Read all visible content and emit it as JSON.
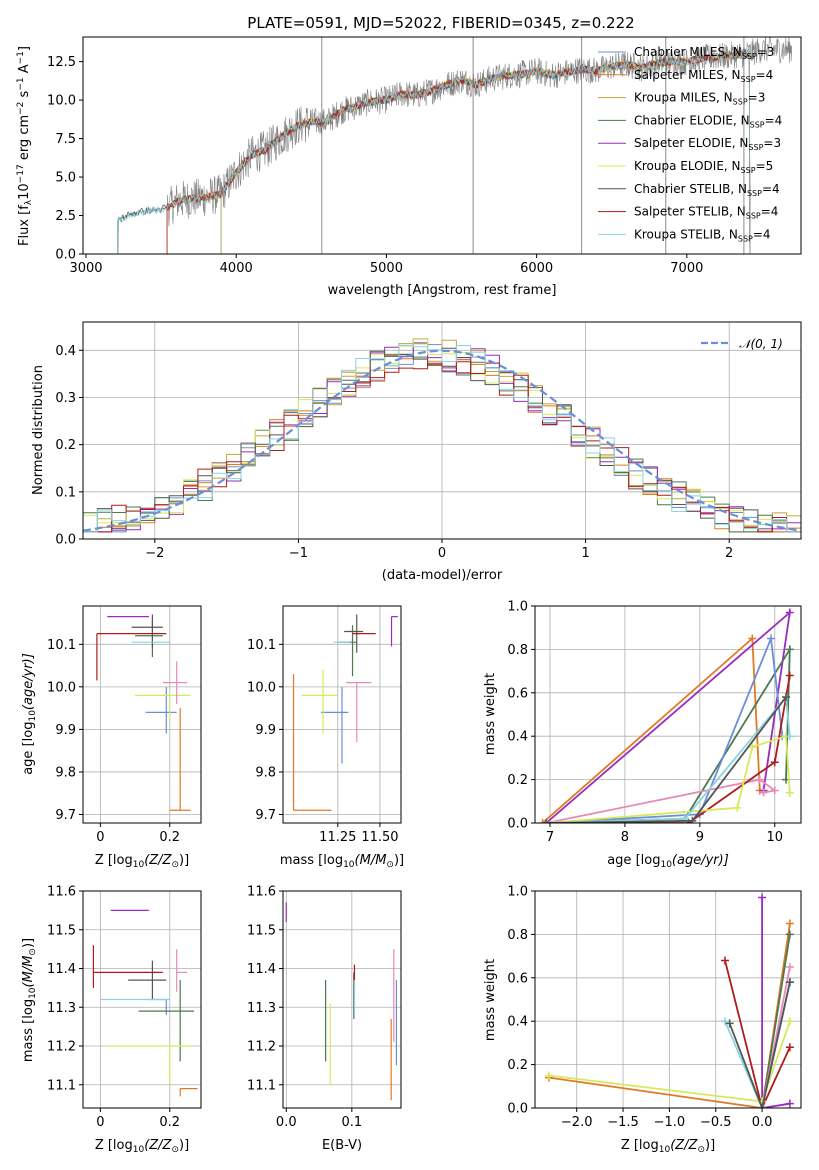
{
  "figure": {
    "title": "PLATE=0591, MJD=52022, FIBERID=0345, z=0.222"
  },
  "models": [
    {
      "name": "Chabrier MILES, N",
      "sub": "SSP",
      "rest": "=3",
      "color": "#6a8fd8"
    },
    {
      "name": "Salpeter MILES, N",
      "sub": "SSP",
      "rest": "=4",
      "color": "#e07a22"
    },
    {
      "name": "Kroupa MILES, N",
      "sub": "SSP",
      "rest": "=3",
      "color": "#c7a23a"
    },
    {
      "name": "Chabrier ELODIE, N",
      "sub": "SSP",
      "rest": "=4",
      "color": "#4a7a4e"
    },
    {
      "name": "Salpeter ELODIE, N",
      "sub": "SSP",
      "rest": "=3",
      "color": "#9a2bbf"
    },
    {
      "name": "Kroupa ELODIE, N",
      "sub": "SSP",
      "rest": "=5",
      "color": "#d8e85a"
    },
    {
      "name": "Chabrier STELIB, N",
      "sub": "SSP",
      "rest": "=4",
      "color": "#555555"
    },
    {
      "name": "Salpeter STELIB, N",
      "sub": "SSP",
      "rest": "=4",
      "color": "#b01c1c"
    },
    {
      "name": "Kroupa STELIB, N",
      "sub": "SSP",
      "rest": "=4",
      "color": "#8ad4e0"
    }
  ],
  "extra_colors": {
    "pink": "#e88ab8",
    "data": "#808080",
    "normal": "#6a8fd8"
  },
  "chart_data": [
    {
      "id": "spectrum",
      "type": "line",
      "title": "PLATE=0591, MJD=52022, FIBERID=0345, z=0.222",
      "xlabel": "wavelength [Angstrom, rest frame]",
      "ylabel": "Flux [f",
      "ylabel_sub": "λ",
      "ylabel_rest": "10",
      "ylabel_sup": "−17",
      "ylabel_end": " erg cm",
      "xlim": [
        2980,
        7760
      ],
      "ylim": [
        0,
        14.1
      ],
      "xticks": [
        3000,
        4000,
        5000,
        6000,
        7000
      ],
      "yticks": [
        "0.0",
        "2.5",
        "5.0",
        "7.5",
        "10.0",
        "12.5"
      ],
      "envelope": {
        "x": [
          3210,
          3300,
          3400,
          3500,
          3560,
          3620,
          3700,
          3800,
          3900,
          4000,
          4100,
          4200,
          4300,
          4400,
          4500,
          4600,
          4700,
          4800,
          4900,
          5000,
          5100,
          5200,
          5300,
          5400,
          5500,
          5600,
          5700,
          5800,
          5900,
          6000,
          6100,
          6200,
          6300,
          6400,
          6500,
          6600,
          6700,
          6800,
          6900,
          7000,
          7100,
          7200,
          7300,
          7400,
          7500
        ],
        "y": [
          2.2,
          2.6,
          2.8,
          2.9,
          3.1,
          3.5,
          3.6,
          3.7,
          3.9,
          5.3,
          6.4,
          6.8,
          7.6,
          8.3,
          8.6,
          8.6,
          9.3,
          9.6,
          9.9,
          10.0,
          10.4,
          10.3,
          10.6,
          11.0,
          11.3,
          11.0,
          11.4,
          11.6,
          11.7,
          11.9,
          11.6,
          11.8,
          12.0,
          11.9,
          12.2,
          12.3,
          12.1,
          12.4,
          12.5,
          12.5,
          12.7,
          12.8,
          12.9,
          13.0,
          13.3
        ]
      },
      "model_starts": {
        "stelib": 3210,
        "elodie": 3900,
        "miles": 3540
      },
      "sky_lines": [
        4570,
        5577,
        6300,
        6860,
        7380
      ]
    },
    {
      "id": "residual_hist",
      "type": "histogram",
      "xlabel": "(data-model)/error",
      "ylabel": "Normed distribution",
      "xlim": [
        -2.5,
        2.5
      ],
      "ylim": [
        0,
        0.46
      ],
      "xticks": [
        "−2",
        "−1",
        "0",
        "1",
        "2"
      ],
      "yticks": [
        "0.0",
        "0.1",
        "0.2",
        "0.3",
        "0.4"
      ],
      "reference": {
        "name": "𝒩(0, 1)",
        "type": "gaussian",
        "mean": 0,
        "sigma": 1
      },
      "bins": {
        "start": -2.5,
        "width": 0.1,
        "count": 50
      }
    },
    {
      "id": "z_vs_age",
      "type": "errorbar",
      "xlabel": "Z [log",
      "xlabel_sub": "10",
      "xlabel_rest": "(Z/Z",
      "ylabel": "age  [log",
      "ylabel_sub": "10",
      "ylabel_rest": "(age/yr)]",
      "xlim": [
        -0.05,
        0.29
      ],
      "ylim": [
        9.68,
        10.19
      ],
      "xticks": [
        0.0,
        0.2
      ],
      "yticks": [
        9.7,
        9.8,
        9.9,
        10.0,
        10.1
      ],
      "points": [
        {
          "model": 0,
          "x": 0.19,
          "y": 9.94,
          "xerr": [
            0.06,
            0.03
          ],
          "yerr": [
            0.05,
            0.06
          ]
        },
        {
          "model": 1,
          "x": 0.23,
          "y": 9.71,
          "xerr": [
            0.03,
            0.03
          ],
          "yerr": [
            0.0,
            0.24
          ]
        },
        {
          "model": 3,
          "x": 0.15,
          "y": 10.12,
          "xerr": [
            0.05,
            0.03
          ],
          "yerr": [
            0.05,
            0.04
          ]
        },
        {
          "model": 4,
          "x": 0.07,
          "y": 10.165,
          "xerr": [
            0.05,
            0.07
          ],
          "yerr": [
            0.0,
            0.0
          ]
        },
        {
          "model": 5,
          "x": 0.2,
          "y": 9.98,
          "xerr": [
            0.1,
            0.06
          ],
          "yerr": [
            0.06,
            0.0
          ]
        },
        {
          "model": 6,
          "x": 0.15,
          "y": 10.14,
          "xerr": [
            0.06,
            0.03
          ],
          "yerr": [
            0.05,
            0.03
          ]
        },
        {
          "model": 7,
          "x": -0.01,
          "y": 10.125,
          "xerr": [
            0.0,
            0.2
          ],
          "yerr": [
            0.11,
            0.0
          ]
        },
        {
          "model": 8,
          "x": 0.15,
          "y": 10.105,
          "xerr": [
            0.06,
            0.05
          ],
          "yerr": [
            0.0,
            0.0
          ]
        },
        {
          "model": 9,
          "x": 0.22,
          "y": 10.01,
          "xerr": [
            0.04,
            0.03
          ],
          "yerr": [
            0.05,
            0.05
          ]
        }
      ]
    },
    {
      "id": "mass_vs_age",
      "type": "errorbar",
      "xlabel": "mass [log",
      "xlabel_sub": "10",
      "xlabel_rest": "(M/M",
      "ylabel": "",
      "xlim": [
        11.04,
        11.6
      ],
      "ylim": [
        9.68,
        10.19
      ],
      "xticks": [
        11.3,
        11.5
      ],
      "xticklabels": [
        "11.25",
        "11.50"
      ],
      "yticks": [
        9.7,
        9.8,
        9.9,
        10.0,
        10.1
      ],
      "points": [
        {
          "model": 0,
          "x": 11.32,
          "y": 9.94,
          "xerr": [
            0.1,
            0.03
          ],
          "yerr": [
            0.12,
            0.06
          ]
        },
        {
          "model": 1,
          "x": 11.09,
          "y": 9.71,
          "xerr": [
            0.0,
            0.18
          ],
          "yerr": [
            0.0,
            0.32
          ]
        },
        {
          "model": 3,
          "x": 11.37,
          "y": 10.105,
          "xerr": [
            0.07,
            0.02
          ],
          "yerr": [
            0.08,
            0.04
          ]
        },
        {
          "model": 4,
          "x": 11.555,
          "y": 10.165,
          "xerr": [
            0.0,
            0.03
          ],
          "yerr": [
            0.07,
            0.0
          ]
        },
        {
          "model": 5,
          "x": 11.23,
          "y": 9.98,
          "xerr": [
            0.1,
            0.07
          ],
          "yerr": [
            0.09,
            0.06
          ]
        },
        {
          "model": 6,
          "x": 11.39,
          "y": 10.13,
          "xerr": [
            0.06,
            0.03
          ],
          "yerr": [
            0.05,
            0.04
          ]
        },
        {
          "model": 7,
          "x": 11.42,
          "y": 10.125,
          "xerr": [
            0.05,
            0.06
          ],
          "yerr": [
            0.0,
            0.0
          ]
        },
        {
          "model": 8,
          "x": 11.33,
          "y": 10.105,
          "xerr": [
            0.05,
            0.03
          ],
          "yerr": [
            0.0,
            0.0
          ]
        },
        {
          "model": 9,
          "x": 11.39,
          "y": 10.01,
          "xerr": [
            0.05,
            0.07
          ],
          "yerr": [
            0.14,
            0.0
          ]
        }
      ]
    },
    {
      "id": "age_vs_mass_weight",
      "type": "line",
      "xlabel": "age  [log",
      "xlabel_sub": "10",
      "xlabel_rest": "(age/yr)]",
      "ylabel": "mass weight",
      "xlim": [
        6.8,
        10.35
      ],
      "ylim": [
        0,
        1.0
      ],
      "xticks": [
        7,
        8,
        9,
        10
      ],
      "yticks": [
        "0.0",
        "0.2",
        "0.4",
        "0.6",
        "0.8",
        "1.0"
      ],
      "series": [
        {
          "model": 1,
          "x": [
            6.9,
            9.7,
            9.8
          ],
          "y": [
            0.0,
            0.85,
            0.15
          ]
        },
        {
          "model": 4,
          "x": [
            6.95,
            10.2,
            9.85
          ],
          "y": [
            0.0,
            0.97,
            0.15
          ]
        },
        {
          "model": 3,
          "x": [
            6.95,
            8.8,
            10.2,
            10.15
          ],
          "y": [
            0.0,
            0.02,
            0.8,
            0.2
          ]
        },
        {
          "model": 0,
          "x": [
            6.95,
            9.0,
            9.95,
            10.1
          ],
          "y": [
            0.0,
            0.04,
            0.85,
            0.4
          ]
        },
        {
          "model": 9,
          "x": [
            6.95,
            9.8,
            10.0,
            9.85
          ],
          "y": [
            0.0,
            0.2,
            0.15,
            0.14
          ]
        },
        {
          "model": 7,
          "x": [
            6.95,
            8.85,
            10.0,
            10.2,
            10.15
          ],
          "y": [
            0.0,
            0.0,
            0.28,
            0.68,
            0.58
          ]
        },
        {
          "model": 5,
          "x": [
            6.95,
            9.5,
            9.7,
            10.15,
            10.2
          ],
          "y": [
            0.0,
            0.07,
            0.35,
            0.4,
            0.14
          ]
        },
        {
          "model": 8,
          "x": [
            6.95,
            8.8,
            10.15,
            10.2
          ],
          "y": [
            0.0,
            0.02,
            0.58,
            0.4
          ]
        },
        {
          "model": 6,
          "x": [
            6.95,
            8.9,
            10.15
          ],
          "y": [
            0.0,
            0.01,
            0.58
          ]
        }
      ]
    },
    {
      "id": "z_vs_mass",
      "type": "errorbar",
      "xlabel": "Z [log",
      "xlabel_sub": "10",
      "xlabel_rest": "(Z/Z",
      "ylabel": "mass [log",
      "ylabel_sub": "10",
      "ylabel_rest": "(M/M",
      "xlim": [
        -0.05,
        0.29
      ],
      "ylim": [
        11.04,
        11.6
      ],
      "xticks": [
        0.0,
        0.2
      ],
      "yticks": [
        11.1,
        11.2,
        11.3,
        11.4,
        11.5,
        11.6
      ],
      "points": [
        {
          "model": 0,
          "x": 0.19,
          "y": 11.32,
          "xerr": [
            0.05,
            0.0
          ],
          "yerr": [
            0.04,
            0.0
          ]
        },
        {
          "model": 1,
          "x": 0.23,
          "y": 11.09,
          "xerr": [
            0.0,
            0.05
          ],
          "yerr": [
            0.02,
            0.0
          ]
        },
        {
          "model": 3,
          "x": 0.23,
          "y": 11.29,
          "xerr": [
            0.12,
            0.04
          ],
          "yerr": [
            0.13,
            0.08
          ]
        },
        {
          "model": 4,
          "x": 0.07,
          "y": 11.55,
          "xerr": [
            0.04,
            0.07
          ],
          "yerr": [
            0.0,
            0.0
          ]
        },
        {
          "model": 5,
          "x": 0.2,
          "y": 11.2,
          "xerr": [
            0.18,
            0.06
          ],
          "yerr": [
            0.1,
            0.0
          ]
        },
        {
          "model": 6,
          "x": 0.15,
          "y": 11.37,
          "xerr": [
            0.07,
            0.04
          ],
          "yerr": [
            0.05,
            0.05
          ]
        },
        {
          "model": 7,
          "x": -0.02,
          "y": 11.39,
          "xerr": [
            0.0,
            0.2
          ],
          "yerr": [
            0.04,
            0.07
          ]
        },
        {
          "model": 8,
          "x": 0.14,
          "y": 11.32,
          "xerr": [
            0.14,
            0.06
          ],
          "yerr": [
            0.0,
            0.0
          ]
        },
        {
          "model": 9,
          "x": 0.22,
          "y": 11.39,
          "xerr": [
            0.0,
            0.03
          ],
          "yerr": [
            0.05,
            0.06
          ]
        }
      ]
    },
    {
      "id": "ebv_vs_mass",
      "type": "errorbar",
      "xlabel": "E(B-V)",
      "ylabel": "",
      "xlim": [
        -0.005,
        0.175
      ],
      "ylim": [
        11.04,
        11.6
      ],
      "xticks": [
        "0.0",
        "0.1"
      ],
      "yticks": [
        11.1,
        11.2,
        11.3,
        11.4,
        11.5,
        11.6
      ],
      "points": [
        {
          "model": 0,
          "x": 0.168,
          "y": 11.25,
          "xerr": [
            0,
            0
          ],
          "yerr": [
            0.1,
            0.12
          ]
        },
        {
          "model": 1,
          "x": 0.16,
          "y": 11.16,
          "xerr": [
            0,
            0
          ],
          "yerr": [
            0.1,
            0.11
          ]
        },
        {
          "model": 3,
          "x": 0.06,
          "y": 11.26,
          "xerr": [
            0,
            0
          ],
          "yerr": [
            0.1,
            0.11
          ]
        },
        {
          "model": 4,
          "x": 0.0,
          "y": 11.55,
          "xerr": [
            0,
            0
          ],
          "yerr": [
            0.03,
            0.02
          ]
        },
        {
          "model": 5,
          "x": 0.067,
          "y": 11.2,
          "xerr": [
            0,
            0
          ],
          "yerr": [
            0.1,
            0.11
          ]
        },
        {
          "model": 6,
          "x": 0.103,
          "y": 11.33,
          "xerr": [
            0,
            0
          ],
          "yerr": [
            0.06,
            0.06
          ]
        },
        {
          "model": 7,
          "x": 0.104,
          "y": 11.38,
          "xerr": [
            0,
            0
          ],
          "yerr": [
            0.03,
            0.03
          ]
        },
        {
          "model": 8,
          "x": 0.104,
          "y": 11.32,
          "xerr": [
            0,
            0
          ],
          "yerr": [
            0.05,
            0.05
          ]
        },
        {
          "model": 9,
          "x": 0.164,
          "y": 11.33,
          "xerr": [
            0,
            0
          ],
          "yerr": [
            0.12,
            0.12
          ]
        }
      ]
    },
    {
      "id": "z_vs_mass_weight",
      "type": "line",
      "xlabel": "Z [log",
      "xlabel_sub": "10",
      "xlabel_rest": "(Z/Z",
      "ylabel": "mass weight",
      "xlim": [
        -2.45,
        0.42
      ],
      "ylim": [
        0,
        1.0
      ],
      "xticks": [
        -2.0,
        -1.5,
        -1.0,
        -0.5,
        0.0,
        0.5
      ],
      "xticklabels": [
        "−2.0",
        "−1.5",
        "−1.0",
        "−0.5",
        "0.0",
        ""
      ],
      "yticks": [
        "0.0",
        "0.2",
        "0.4",
        "0.6",
        "0.8",
        "1.0"
      ],
      "series": [
        {
          "model": 4,
          "x": [
            0.0,
            0.0,
            0.3
          ],
          "y": [
            0.97,
            0.0,
            0.02
          ]
        },
        {
          "model": 1,
          "x": [
            -2.3,
            0.0,
            0.3
          ],
          "y": [
            0.14,
            0.0,
            0.85
          ]
        },
        {
          "model": 3,
          "x": [
            0.0,
            0.3
          ],
          "y": [
            0.0,
            0.8
          ]
        },
        {
          "model": 7,
          "x": [
            -0.4,
            0.0,
            0.3
          ],
          "y": [
            0.68,
            0.0,
            0.28
          ]
        },
        {
          "model": 8,
          "x": [
            -0.4,
            0.0,
            0.3
          ],
          "y": [
            0.4,
            0.0,
            0.58
          ]
        },
        {
          "model": 5,
          "x": [
            -2.3,
            0.0,
            0.3
          ],
          "y": [
            0.15,
            0.03,
            0.4
          ]
        },
        {
          "model": 9,
          "x": [
            0.0,
            0.3
          ],
          "y": [
            0.0,
            0.65
          ]
        },
        {
          "model": 0,
          "x": [
            0.0,
            0.3
          ],
          "y": [
            0.0,
            0.58
          ]
        },
        {
          "model": 6,
          "x": [
            -0.35,
            0.0,
            0.3
          ],
          "y": [
            0.39,
            0.0,
            0.58
          ]
        }
      ]
    }
  ]
}
